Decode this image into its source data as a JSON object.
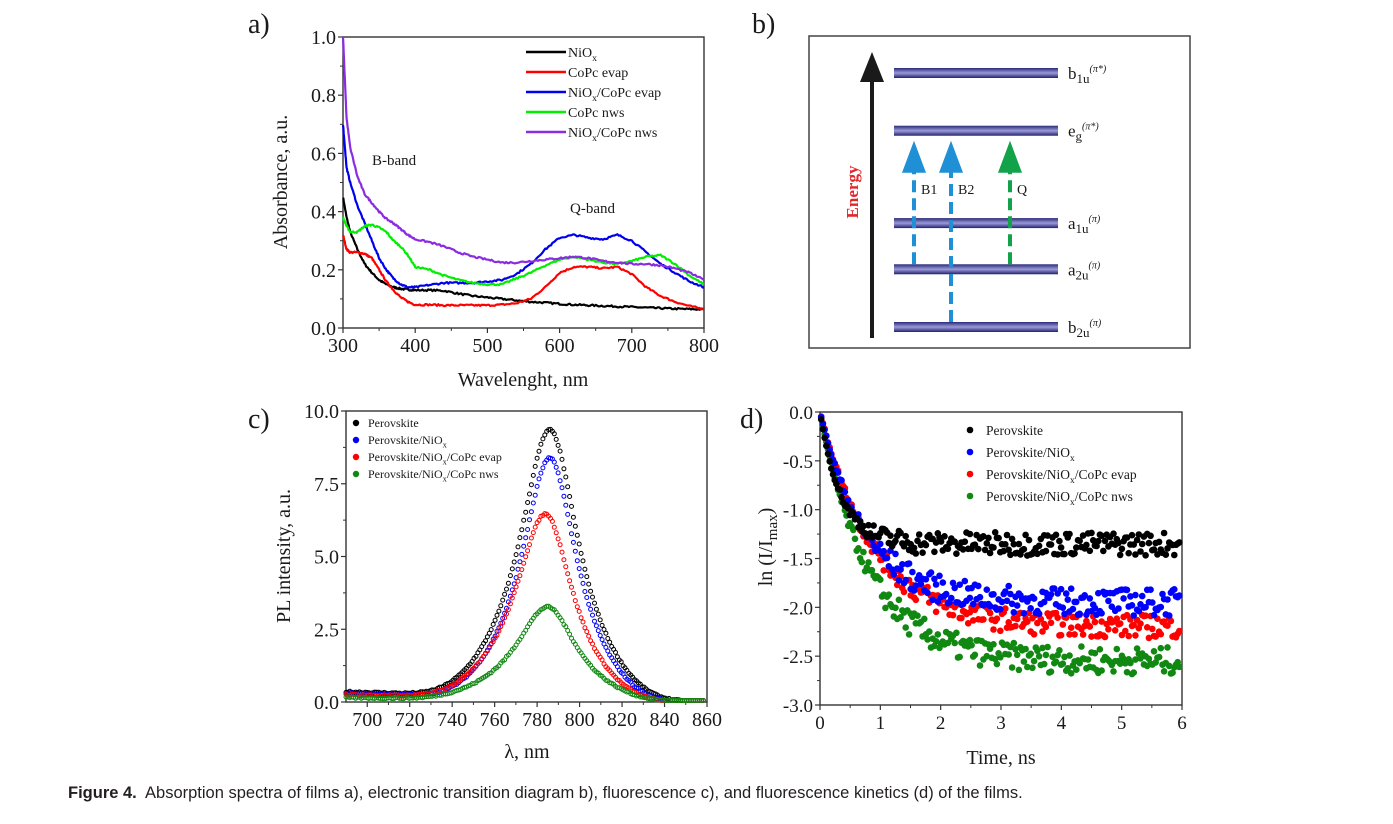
{
  "figure": {
    "caption_label": "Figure 4.",
    "caption_text": "Absorption spectra of films a), electronic transition diagram b), fluorescence c), and fluorescence kinetics (d) of the films."
  },
  "chart_data": [
    {
      "panel": "a)",
      "type": "line",
      "xlabel": "Wavelenght, nm",
      "ylabel": "Absorbance, a.u.",
      "xlim": [
        300,
        800
      ],
      "ylim": [
        0.0,
        1.0
      ],
      "xticks": [
        "300",
        "400",
        "500",
        "600",
        "700",
        "800"
      ],
      "yticks": [
        "0.0",
        "0.2",
        "0.4",
        "0.6",
        "0.8",
        "1.0"
      ],
      "legend_position": "top-right",
      "annotations": [
        "B-band",
        "Q-band"
      ],
      "x": [
        300,
        305,
        310,
        320,
        330,
        340,
        350,
        360,
        370,
        380,
        390,
        400,
        420,
        440,
        460,
        480,
        500,
        520,
        540,
        560,
        580,
        600,
        620,
        640,
        660,
        680,
        700,
        720,
        740,
        760,
        780,
        800
      ],
      "series": [
        {
          "name": "NiOx",
          "label_main": "NiO",
          "label_sub": "x",
          "label_rest": "",
          "color": "#000000",
          "values": [
            0.45,
            0.38,
            0.33,
            0.27,
            0.22,
            0.19,
            0.165,
            0.15,
            0.14,
            0.135,
            0.132,
            0.13,
            0.13,
            0.128,
            0.118,
            0.11,
            0.105,
            0.1,
            0.095,
            0.09,
            0.087,
            0.083,
            0.08,
            0.078,
            0.076,
            0.074,
            0.072,
            0.07,
            0.068,
            0.066,
            0.065,
            0.064
          ]
        },
        {
          "name": "CoPc evap",
          "label_main": "CoPc evap",
          "label_sub": "",
          "label_rest": "",
          "color": "#ff0000",
          "values": [
            0.32,
            0.27,
            0.26,
            0.26,
            0.255,
            0.24,
            0.2,
            0.16,
            0.13,
            0.105,
            0.09,
            0.08,
            0.08,
            0.078,
            0.078,
            0.078,
            0.078,
            0.08,
            0.085,
            0.1,
            0.14,
            0.19,
            0.21,
            0.21,
            0.205,
            0.21,
            0.185,
            0.14,
            0.11,
            0.09,
            0.075,
            0.065
          ]
        },
        {
          "name": "NiOx/CoPc evap",
          "label_main": "NiO",
          "label_sub": "x",
          "label_rest": "/CoPc evap",
          "color": "#0000ee",
          "values": [
            0.7,
            0.55,
            0.5,
            0.42,
            0.36,
            0.3,
            0.24,
            0.2,
            0.17,
            0.15,
            0.14,
            0.14,
            0.148,
            0.155,
            0.155,
            0.155,
            0.16,
            0.165,
            0.185,
            0.22,
            0.27,
            0.31,
            0.32,
            0.31,
            0.305,
            0.32,
            0.3,
            0.26,
            0.22,
            0.19,
            0.16,
            0.14
          ]
        },
        {
          "name": "CoPc nws",
          "label_main": "CoPc nws",
          "label_sub": "",
          "label_rest": "",
          "color": "#00ee00",
          "values": [
            0.38,
            0.35,
            0.33,
            0.33,
            0.35,
            0.355,
            0.345,
            0.33,
            0.3,
            0.28,
            0.25,
            0.21,
            0.2,
            0.18,
            0.165,
            0.155,
            0.15,
            0.15,
            0.17,
            0.19,
            0.215,
            0.235,
            0.245,
            0.235,
            0.225,
            0.22,
            0.23,
            0.245,
            0.25,
            0.22,
            0.18,
            0.15
          ]
        },
        {
          "name": "NiOx/CoPc nws",
          "label_main": "NiO",
          "label_sub": "x",
          "label_rest": "/CoPc nws",
          "color": "#8b2be2",
          "values": [
            1.0,
            0.72,
            0.62,
            0.52,
            0.46,
            0.43,
            0.4,
            0.375,
            0.36,
            0.34,
            0.32,
            0.305,
            0.295,
            0.28,
            0.26,
            0.245,
            0.235,
            0.225,
            0.225,
            0.23,
            0.235,
            0.24,
            0.245,
            0.24,
            0.23,
            0.225,
            0.22,
            0.22,
            0.215,
            0.205,
            0.19,
            0.165
          ]
        }
      ]
    },
    {
      "panel": "b)",
      "type": "diagram",
      "axis_label": "Energy",
      "axis_label_color": "#e3262b",
      "levels": [
        {
          "name": "b1u",
          "main": "b",
          "sub": "1u",
          "sup": "(π*)",
          "energy": 5
        },
        {
          "name": "eg",
          "main": "e",
          "sub": "g",
          "sup": "(π*)",
          "energy": 4
        },
        {
          "name": "a1u",
          "main": "a",
          "sub": "1u",
          "sup": "(π)",
          "energy": 2.4
        },
        {
          "name": "a2u",
          "main": "a",
          "sub": "2u",
          "sup": "(π)",
          "energy": 1.6
        },
        {
          "name": "b2u",
          "main": "b",
          "sub": "2u",
          "sup": "(π)",
          "energy": 0.6
        }
      ],
      "transitions": [
        {
          "label": "B1",
          "from": "a2u",
          "to": "eg",
          "color": "#1f8fd6"
        },
        {
          "label": "B2",
          "from": "b2u",
          "to": "eg",
          "color": "#1f8fd6"
        },
        {
          "label": "Q",
          "from": "a2u",
          "to": "eg",
          "color": "#12a34a"
        }
      ]
    },
    {
      "panel": "c)",
      "type": "scatter",
      "xlabel": "λ, nm",
      "ylabel": "PL intensity, a.u.",
      "xlim": [
        690,
        860
      ],
      "ylim": [
        0.0,
        10.0
      ],
      "xticks": [
        "700",
        "720",
        "740",
        "760",
        "780",
        "800",
        "820",
        "840",
        "860"
      ],
      "yticks": [
        "0.0",
        "2.5",
        "5.0",
        "7.5",
        "10.0"
      ],
      "legend_position": "top-left",
      "series": [
        {
          "name": "Perovskite",
          "label_main": "Perovskite",
          "label_sub": "",
          "label_rest": "",
          "color": "#000000",
          "peak_x": 786,
          "peak_y": 9.2,
          "width_left": 18,
          "width_right": 17,
          "baseline": 0.35
        },
        {
          "name": "Perovskite/NiOx",
          "label_main": "Perovskite/NiO",
          "label_sub": "x",
          "label_rest": "",
          "color": "#0000ff",
          "peak_x": 786,
          "peak_y": 8.25,
          "width_left": 17,
          "width_right": 16,
          "baseline": 0.3
        },
        {
          "name": "Perovskite/NiOx/CoPc evap",
          "label_main": "Perovskite/NiO",
          "label_sub": "x",
          "label_rest": "/CoPc evap",
          "color": "#ff0000",
          "peak_x": 784,
          "peak_y": 6.35,
          "width_left": 18,
          "width_right": 16,
          "baseline": 0.25
        },
        {
          "name": "Perovskite/NiOx/CoPc nws",
          "label_main": "Perovskite/NiO",
          "label_sub": "x",
          "label_rest": "/CoPc nws",
          "color": "#118811",
          "peak_x": 785,
          "peak_y": 3.2,
          "width_left": 19,
          "width_right": 17,
          "baseline": 0.15
        }
      ]
    },
    {
      "panel": "d)",
      "type": "scatter",
      "xlabel": "Time, ns",
      "ylabel_main": "ln (I/I",
      "ylabel_sub": "max",
      "ylabel_end": ")",
      "xlim": [
        0,
        6
      ],
      "ylim": [
        -3.0,
        0.0
      ],
      "xticks": [
        "0",
        "1",
        "2",
        "3",
        "4",
        "5",
        "6"
      ],
      "yticks": [
        "0.0",
        "-0.5",
        "-1.0",
        "-1.5",
        "-2.0",
        "-2.5",
        "-3.0"
      ],
      "legend_position": "top-right",
      "series": [
        {
          "name": "Perovskite",
          "label_main": "Perovskite",
          "label_sub": "",
          "label_rest": "",
          "color": "#000000",
          "plateau": -1.35,
          "tau": 0.35,
          "noise": 0.12
        },
        {
          "name": "Perovskite/NiOx",
          "label_main": "Perovskite/NiO",
          "label_sub": "x",
          "label_rest": "",
          "color": "#0000ff",
          "plateau": -1.95,
          "tau": 0.75,
          "noise": 0.14
        },
        {
          "name": "Perovskite/NiOx/CoPc evap",
          "label_main": "Perovskite/NiO",
          "label_sub": "x",
          "label_rest": "/CoPc evap",
          "color": "#ff0000",
          "plateau": -2.2,
          "tau": 0.9,
          "noise": 0.12
        },
        {
          "name": "Perovskite/NiOx/CoPc nws",
          "label_main": "Perovskite/NiO",
          "label_sub": "x",
          "label_rest": "/CoPc nws",
          "color": "#118811",
          "plateau": -2.55,
          "tau": 0.8,
          "noise": 0.14
        }
      ]
    }
  ]
}
